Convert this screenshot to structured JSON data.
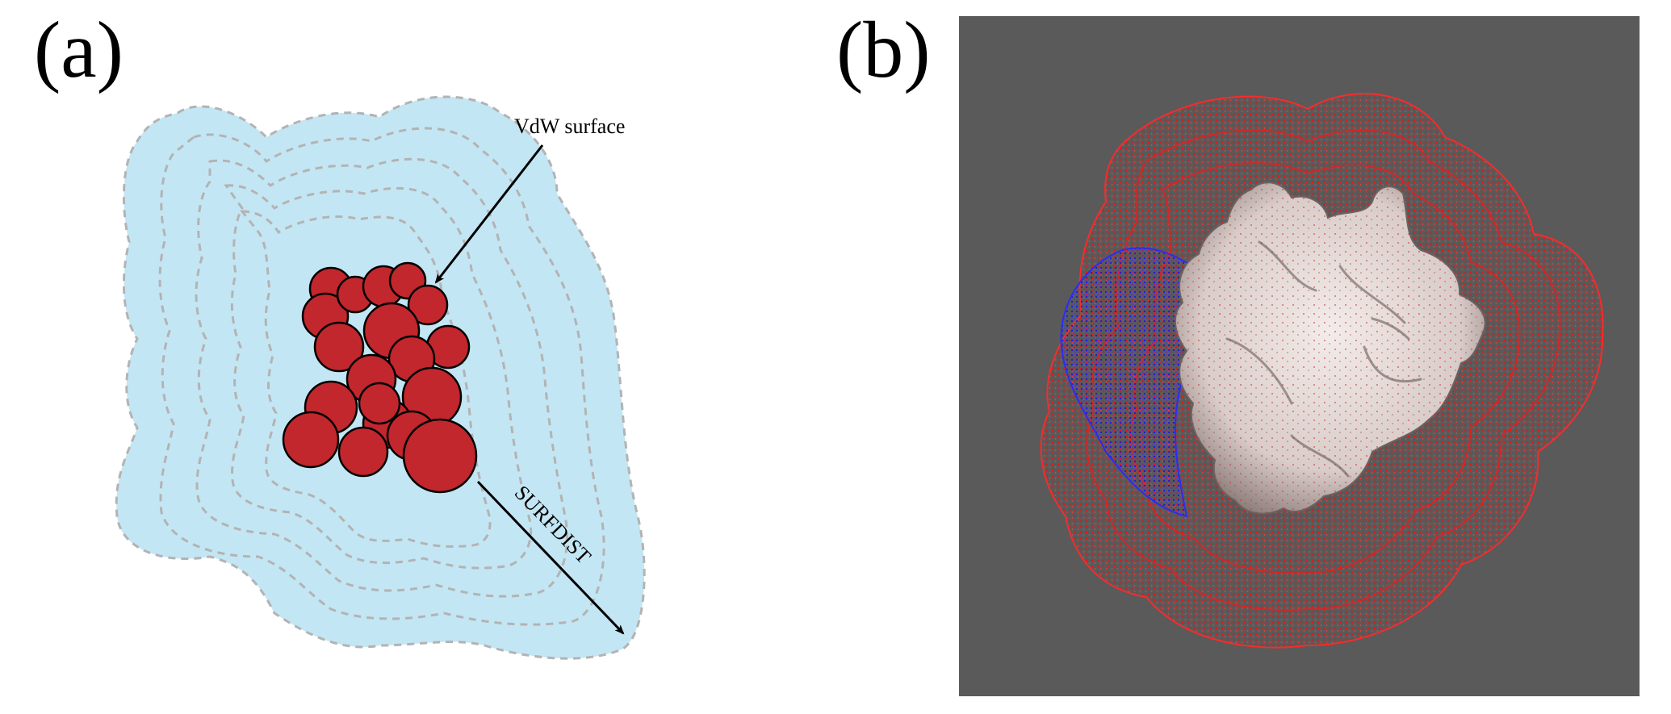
{
  "panels": {
    "a": {
      "label": "(a)",
      "annotations": {
        "vdw_surface": "VdW surface",
        "surfdist": "SURFDIST"
      }
    },
    "b": {
      "label": "(b)"
    }
  },
  "colors": {
    "grid_region": "#c3e6f4",
    "contour_dash": "#b3b3b3",
    "atoms": "#c1272d",
    "viewer_background": "#5a5a5a",
    "grid_points_positive": "#e01818",
    "grid_points_negative": "#1c1ce0",
    "protein_surface": "#e2d6d3"
  }
}
